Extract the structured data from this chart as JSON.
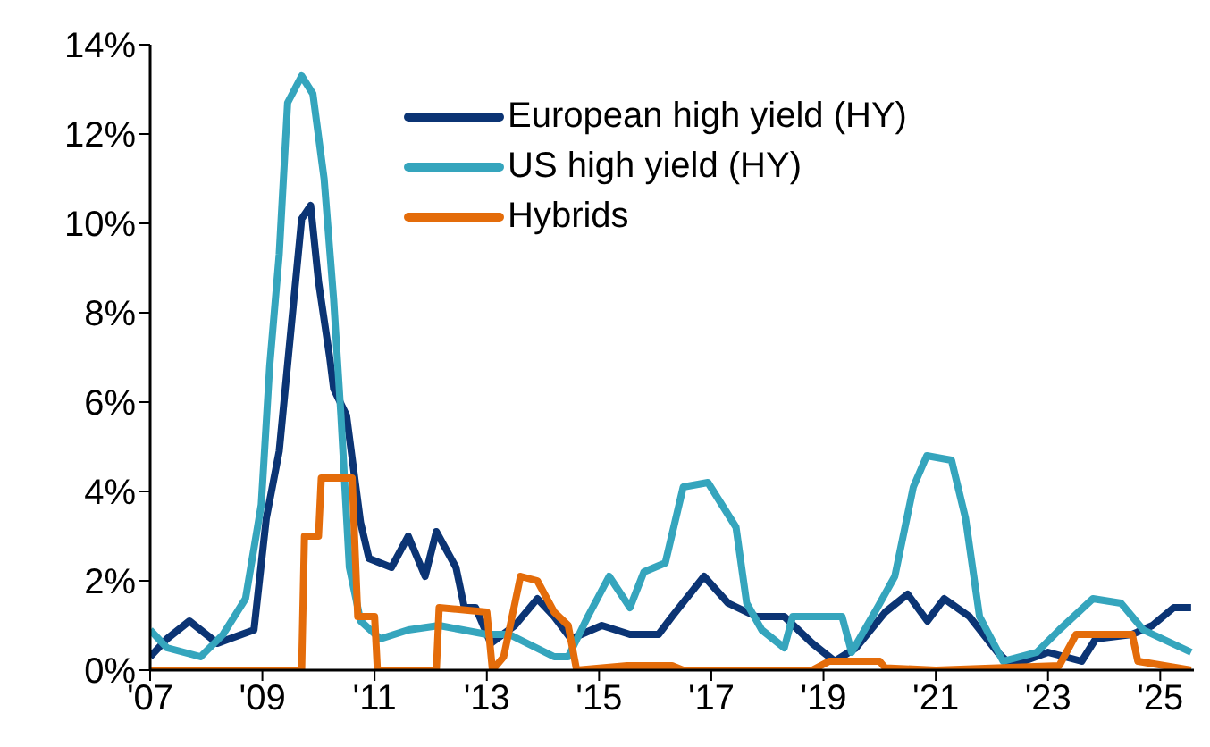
{
  "chart_data": {
    "type": "line",
    "xlim": [
      2007,
      2025.6
    ],
    "ylim": [
      0,
      14
    ],
    "xticks": [
      {
        "value": 2007,
        "label": "'07"
      },
      {
        "value": 2009,
        "label": "'09"
      },
      {
        "value": 2011,
        "label": "'11"
      },
      {
        "value": 2013,
        "label": "'13"
      },
      {
        "value": 2015,
        "label": "'15"
      },
      {
        "value": 2017,
        "label": "'17"
      },
      {
        "value": 2019,
        "label": "'19"
      },
      {
        "value": 2021,
        "label": "'21"
      },
      {
        "value": 2023,
        "label": "'23"
      },
      {
        "value": 2025,
        "label": "'25"
      }
    ],
    "yticks": [
      {
        "value": 0,
        "label": "0%"
      },
      {
        "value": 2,
        "label": "2%"
      },
      {
        "value": 4,
        "label": "4%"
      },
      {
        "value": 6,
        "label": "6%"
      },
      {
        "value": 8,
        "label": "8%"
      },
      {
        "value": 10,
        "label": "10%"
      },
      {
        "value": 12,
        "label": "12%"
      },
      {
        "value": 14,
        "label": "14%"
      }
    ],
    "grid": false,
    "legend": "top",
    "series": [
      {
        "name": "European high yield (HY)",
        "color": "#0b3474",
        "x": [
          2007,
          2007.3,
          2007.7,
          2008.2,
          2008.85,
          2009.07,
          2009.3,
          2009.5,
          2009.7,
          2009.86,
          2010,
          2010.2,
          2010.27,
          2010.5,
          2010.75,
          2010.9,
          2011.3,
          2011.6,
          2011.9,
          2012.1,
          2012.45,
          2012.6,
          2012.8,
          2013.07,
          2013.5,
          2013.9,
          2014.2,
          2014.5,
          2015.05,
          2015.55,
          2016.06,
          2016.3,
          2016.87,
          2017.3,
          2017.8,
          2018.3,
          2018.8,
          2019.2,
          2019.58,
          2020.1,
          2020.5,
          2020.85,
          2021.15,
          2021.6,
          2022.1,
          2022.35,
          2023,
          2023.6,
          2023.85,
          2024.5,
          2024.86,
          2025.24,
          2025.55
        ],
        "values": [
          0.3,
          0.7,
          1.1,
          0.6,
          0.9,
          3.4,
          4.9,
          7.5,
          10.1,
          10.4,
          8.7,
          7,
          6.3,
          5.7,
          3.3,
          2.5,
          2.3,
          3,
          2.1,
          3.1,
          2.3,
          1.4,
          1.4,
          0.6,
          1,
          1.6,
          1.2,
          0.7,
          1,
          0.8,
          0.8,
          1.2,
          2.1,
          1.5,
          1.2,
          1.2,
          0.6,
          0.2,
          0.5,
          1.3,
          1.7,
          1.1,
          1.6,
          1.2,
          0.4,
          0.1,
          0.4,
          0.2,
          0.7,
          0.8,
          1,
          1.4,
          1.4
        ]
      },
      {
        "name": "US high yield (HY)",
        "color": "#35a5bd",
        "x": [
          2007,
          2007.3,
          2007.9,
          2008.3,
          2008.7,
          2008.98,
          2009.13,
          2009.3,
          2009.45,
          2009.7,
          2009.9,
          2010.1,
          2010.27,
          2010.4,
          2010.55,
          2010.75,
          2011.1,
          2011.6,
          2012.15,
          2013,
          2013.4,
          2014.2,
          2014.45,
          2014.8,
          2015.18,
          2015.55,
          2015.8,
          2016.18,
          2016.5,
          2016.94,
          2017.44,
          2017.63,
          2017.9,
          2018.3,
          2018.45,
          2019.33,
          2019.5,
          2019.96,
          2020.27,
          2020.6,
          2020.84,
          2021.28,
          2021.53,
          2021.78,
          2022.2,
          2022.8,
          2023.2,
          2023.8,
          2024.3,
          2024.7,
          2025.55
        ],
        "values": [
          0.9,
          0.5,
          0.3,
          0.8,
          1.6,
          3.7,
          6.8,
          9.3,
          12.7,
          13.3,
          12.9,
          11,
          8.3,
          5.7,
          2.3,
          1.1,
          0.7,
          0.9,
          1,
          0.8,
          0.8,
          0.3,
          0.3,
          1.2,
          2.1,
          1.4,
          2.2,
          2.4,
          4.1,
          4.2,
          3.2,
          1.5,
          0.9,
          0.5,
          1.2,
          1.2,
          0.4,
          1.4,
          2.1,
          4.1,
          4.8,
          4.7,
          3.4,
          1.2,
          0.2,
          0.4,
          0.9,
          1.6,
          1.5,
          0.9,
          0.4
        ]
      },
      {
        "name": "Hybrids",
        "color": "#e46c0a",
        "x": [
          2007,
          2009.7,
          2009.75,
          2010,
          2010.05,
          2010.6,
          2010.7,
          2011,
          2011.05,
          2012.1,
          2012.15,
          2013,
          2013.1,
          2013.3,
          2013.6,
          2013.9,
          2014.2,
          2014.45,
          2014.6,
          2015.5,
          2016.3,
          2016.5,
          2018.8,
          2019.1,
          2020,
          2020.1,
          2021,
          2023.2,
          2023.5,
          2024.5,
          2024.6,
          2025.55
        ],
        "values": [
          0,
          0,
          3,
          3,
          4.3,
          4.3,
          1.2,
          1.2,
          0,
          0,
          1.4,
          1.3,
          0,
          0.3,
          2.1,
          2,
          1.3,
          1,
          0,
          0.1,
          0.1,
          0,
          0,
          0.2,
          0.2,
          0.05,
          0,
          0.1,
          0.8,
          0.8,
          0.2,
          0
        ]
      }
    ]
  }
}
